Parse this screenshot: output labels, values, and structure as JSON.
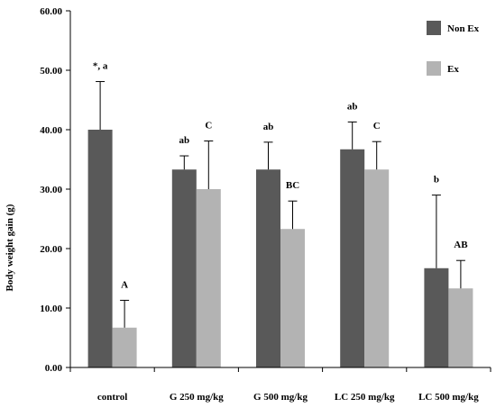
{
  "chart_data": {
    "type": "bar",
    "title": "",
    "xlabel": "",
    "ylabel": "Body weight gain (g)",
    "ylim": [
      0,
      60
    ],
    "yticks": [
      "0.00",
      "10.00",
      "20.00",
      "30.00",
      "40.00",
      "50.00",
      "60.00"
    ],
    "grid": false,
    "legend_position": "top-right",
    "categories": [
      "control",
      "G 250 mg/kg",
      "G 500 mg/kg",
      "LC 250 mg/kg",
      "LC 500 mg/kg"
    ],
    "series": [
      {
        "name": "Non Ex",
        "color": "#595959",
        "values": [
          40.0,
          33.3,
          33.3,
          36.7,
          16.7
        ],
        "errors": [
          8.1,
          2.3,
          4.6,
          4.6,
          12.3
        ],
        "labels": [
          "*, a",
          "ab",
          "ab",
          "ab",
          "b"
        ]
      },
      {
        "name": "Ex",
        "color": "#b3b3b3",
        "values": [
          6.7,
          30.0,
          23.3,
          33.3,
          13.3
        ],
        "errors": [
          4.6,
          8.1,
          4.7,
          4.7,
          4.7
        ],
        "labels": [
          "A",
          "C",
          "BC",
          "C",
          "AB"
        ]
      }
    ]
  }
}
